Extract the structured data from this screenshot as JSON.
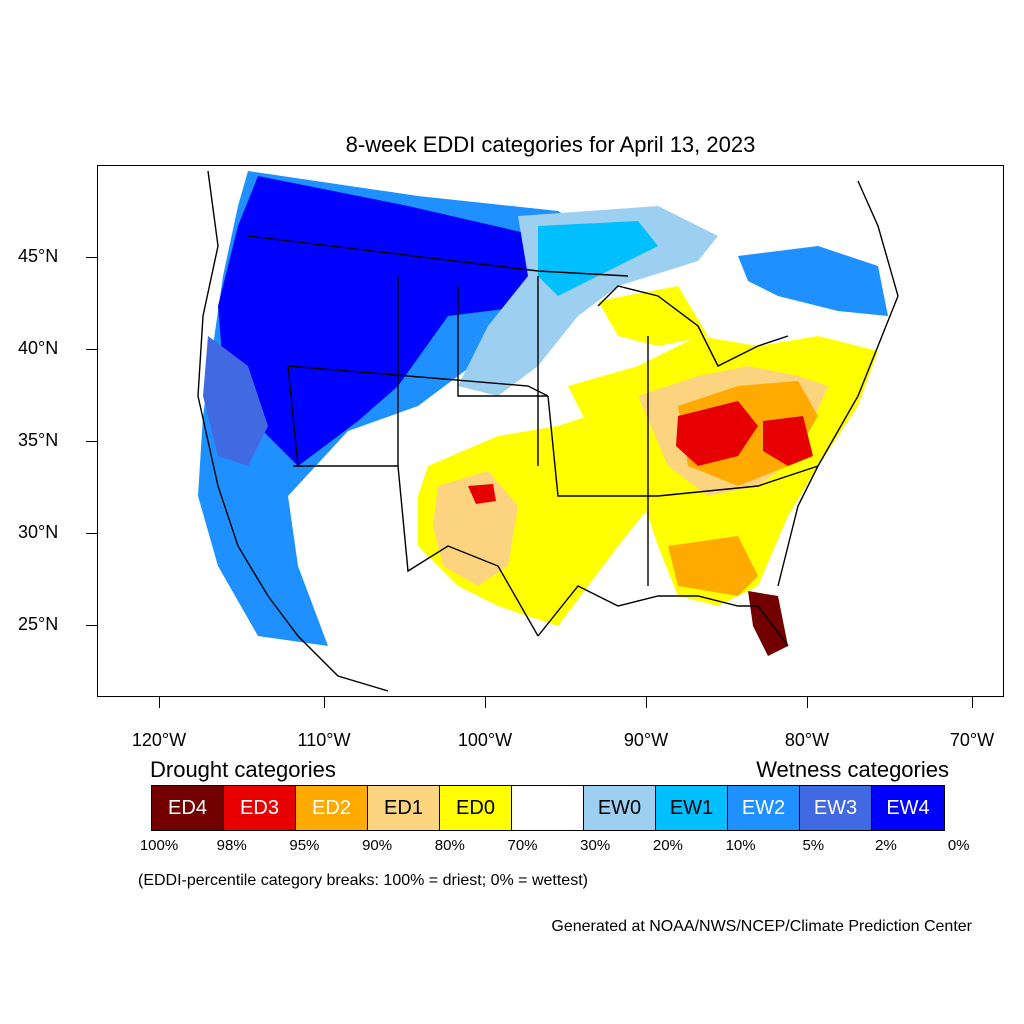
{
  "title": "8-week EDDI categories for April 13, 2023",
  "lat_labels": [
    "45°N",
    "40°N",
    "35°N",
    "30°N",
    "25°N"
  ],
  "lon_labels": [
    "120°W",
    "110°W",
    "100°W",
    "90°W",
    "80°W",
    "70°W"
  ],
  "legend": {
    "drought_heading": "Drought categories",
    "wetness_heading": "Wetness categories",
    "categories": [
      {
        "label": "ED4",
        "color": "#730000",
        "text_color": "#ffffff"
      },
      {
        "label": "ED3",
        "color": "#e60000",
        "text_color": "#ffffff"
      },
      {
        "label": "ED2",
        "color": "#ffaa00",
        "text_color": "#ffffff"
      },
      {
        "label": "ED1",
        "color": "#fcd37f",
        "text_color": "#000000"
      },
      {
        "label": "ED0",
        "color": "#ffff00",
        "text_color": "#000000"
      },
      {
        "label": "",
        "color": "#ffffff",
        "text_color": "#000000"
      },
      {
        "label": "EW0",
        "color": "#9dd0f0",
        "text_color": "#000000"
      },
      {
        "label": "EW1",
        "color": "#00bfff",
        "text_color": "#000000"
      },
      {
        "label": "EW2",
        "color": "#1e90ff",
        "text_color": "#ffffff"
      },
      {
        "label": "EW3",
        "color": "#4169e1",
        "text_color": "#ffffff"
      },
      {
        "label": "EW4",
        "color": "#0000ff",
        "text_color": "#ffffff"
      }
    ],
    "breaks": [
      "100%",
      "98%",
      "95%",
      "90%",
      "80%",
      "70%",
      "30%",
      "20%",
      "10%",
      "5%",
      "2%",
      "0%"
    ]
  },
  "note": "(EDDI-percentile category breaks: 100% = driest; 0% = wettest)",
  "credit": "Generated at NOAA/NWS/NCEP/Climate Prediction Center"
}
